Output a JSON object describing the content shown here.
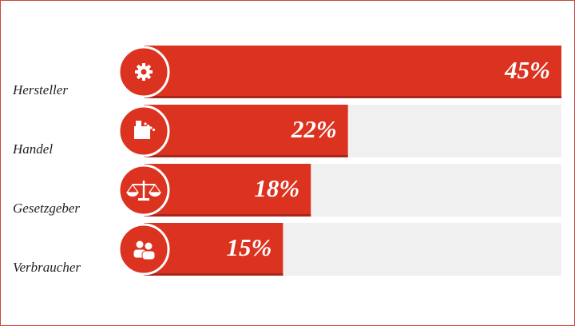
{
  "chart_data": {
    "type": "bar",
    "orientation": "horizontal",
    "categories": [
      "Hersteller",
      "Handel",
      "Gesetzgeber",
      "Verbraucher"
    ],
    "values": [
      45,
      22,
      18,
      15
    ],
    "value_labels": [
      "45%",
      "22%",
      "18%",
      "15%"
    ],
    "color": "#dc3220",
    "xlim": [
      0,
      45
    ]
  }
}
